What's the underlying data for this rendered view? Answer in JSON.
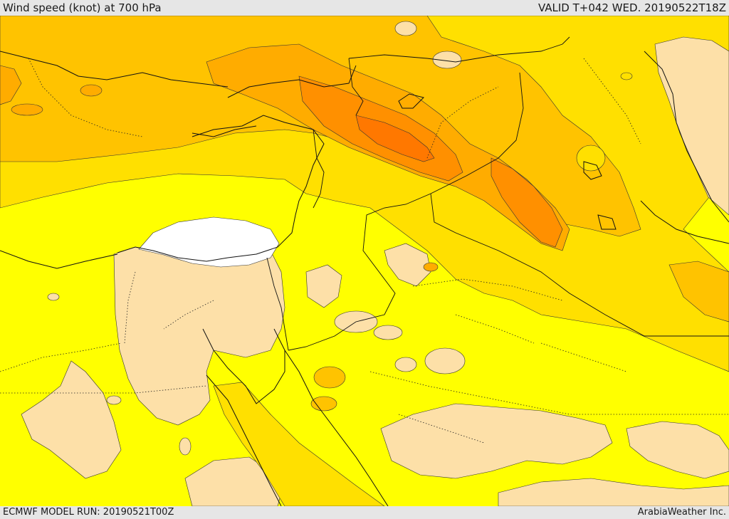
{
  "header": {
    "title": "Wind speed (knot) at 700 hPa",
    "valid": "VALID T+042 WED. 20190522T18Z"
  },
  "footer": {
    "model_run": "ECMWF MODEL RUN: 20190521T00Z",
    "credit": "ArabiaWeather Inc."
  },
  "map": {
    "palette": {
      "calm": "#ffffff",
      "light": "#fde0a8",
      "yellow": "#ffff00",
      "gold": "#ffe000",
      "amber": "#ffc300",
      "orange_light": "#ffac00",
      "orange": "#ff9000",
      "orange_deep": "#ff7800"
    }
  }
}
